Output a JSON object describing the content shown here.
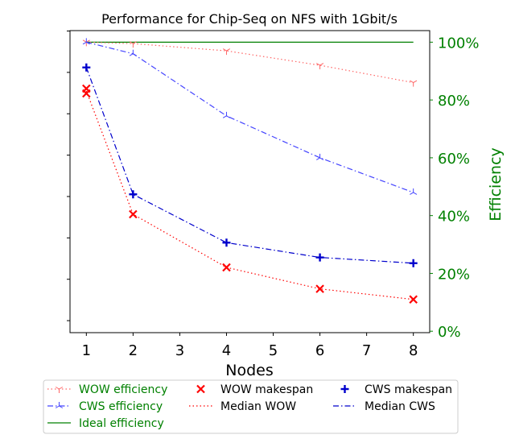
{
  "chart_data": {
    "type": "line",
    "title": "Performance for Chip-Seq on NFS with 1Gbit/s",
    "xlabel": "Nodes",
    "ylabel_right": "Efficiency",
    "x_ticks": [
      "1",
      "2",
      "3",
      "4",
      "5",
      "6",
      "7",
      "8"
    ],
    "xlim": [
      0.65,
      8.35
    ],
    "y2_ticks": [
      "0%",
      "20%",
      "40%",
      "60%",
      "80%",
      "100%"
    ],
    "y2lim": [
      -0.005,
      1.04
    ],
    "left_axis": {
      "tick_labels_visible": false,
      "ylim": [
        0,
        1
      ]
    },
    "series": [
      {
        "name": "WOW efficiency",
        "axis": "right",
        "color": "#ff6666",
        "style": "dotted",
        "marker": "tri_down",
        "x": [
          1,
          2,
          4,
          6,
          8
        ],
        "values": [
          1.0,
          0.995,
          0.97,
          0.92,
          0.86
        ]
      },
      {
        "name": "CWS efficiency",
        "axis": "right",
        "color": "#4444ff",
        "style": "dashdot",
        "marker": "tri_up",
        "x": [
          1,
          2,
          4,
          6,
          8
        ],
        "values": [
          1.0,
          0.96,
          0.745,
          0.6,
          0.48
        ]
      },
      {
        "name": "Ideal efficiency",
        "axis": "right",
        "color": "#008000",
        "style": "solid",
        "marker": "none",
        "x": [
          1,
          8
        ],
        "values": [
          1.0,
          1.0
        ]
      },
      {
        "name": "WOW makespan",
        "axis": "left",
        "color": "#ff0000",
        "style": "none",
        "marker": "x",
        "x": [
          1,
          1,
          2,
          4,
          6,
          8
        ],
        "values": [
          0.808,
          0.792,
          0.392,
          0.216,
          0.145,
          0.11
        ]
      },
      {
        "name": "Median WOW",
        "axis": "left",
        "color": "#ff0000",
        "style": "dotted",
        "marker": "none",
        "x": [
          1,
          2,
          4,
          6,
          8
        ],
        "values": [
          0.8,
          0.392,
          0.216,
          0.145,
          0.11
        ]
      },
      {
        "name": "CWS makespan",
        "axis": "left",
        "color": "#0000cc",
        "style": "none",
        "marker": "plus",
        "x": [
          1,
          2,
          4,
          6,
          8
        ],
        "values": [
          0.878,
          0.458,
          0.298,
          0.249,
          0.23
        ]
      },
      {
        "name": "Median CWS",
        "axis": "left",
        "color": "#0000cc",
        "style": "dashdot",
        "marker": "none",
        "x": [
          1,
          2,
          4,
          6,
          8
        ],
        "values": [
          0.878,
          0.458,
          0.298,
          0.249,
          0.23
        ]
      }
    ],
    "legend": {
      "placement": "bottom",
      "columns": 3,
      "entries": [
        "WOW efficiency",
        "CWS efficiency",
        "Ideal efficiency",
        "WOW makespan",
        "Median WOW",
        "CWS makespan",
        "Median CWS"
      ]
    },
    "colors": {
      "axis_right": "#008000",
      "axis_left": "#000000"
    },
    "grid": false
  }
}
